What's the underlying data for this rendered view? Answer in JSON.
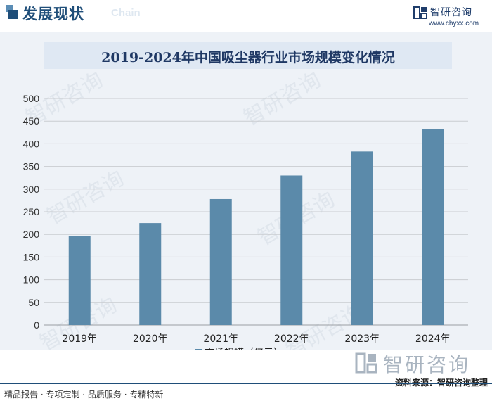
{
  "header": {
    "title": "发展现状",
    "ghost_text": "Chain",
    "logo_name": "智研咨询",
    "logo_url": "www.chyxx.com"
  },
  "watermark": "智研咨询",
  "chart_data": {
    "type": "bar",
    "title": "2019-2024年中国吸尘器行业市场规模变化情况",
    "categories": [
      "2019年",
      "2020年",
      "2021年",
      "2022年",
      "2023年",
      "2024年"
    ],
    "series": [
      {
        "name": "市场规模（亿元）",
        "values": [
          197,
          225,
          278,
          330,
          383,
          432
        ]
      }
    ],
    "ylim": [
      0,
      500
    ],
    "yticks": [
      0,
      50,
      100,
      150,
      200,
      250,
      300,
      350,
      400,
      450,
      500
    ],
    "grid": true,
    "legend": "bottom",
    "bar_color": "#5b8aaa"
  },
  "footer": {
    "brand": "智研咨询",
    "services": "精品报告 · 专项定制 · 品质服务 · 专精特新",
    "source": "资料来源：智研咨询整理"
  }
}
